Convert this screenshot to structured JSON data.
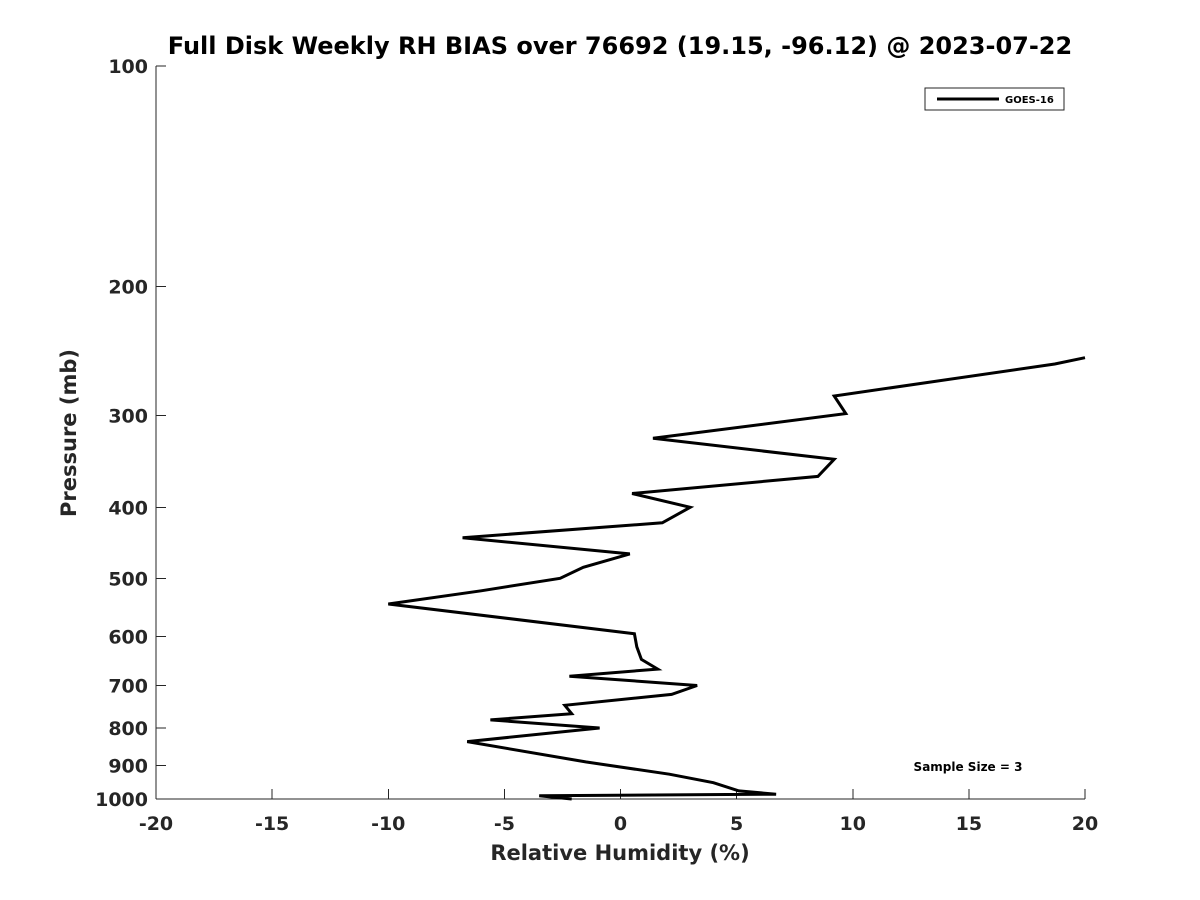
{
  "chart_data": {
    "type": "line",
    "title": "Full Disk Weekly RH BIAS over 76692 (19.15, -96.12) @ 2023-07-22",
    "xlabel": "Relative Humidity (%)",
    "ylabel": "Pressure (mb)",
    "xlim": [
      -20,
      20
    ],
    "ylim": [
      100,
      1000
    ],
    "yscale": "log",
    "y_reversed": true,
    "x_ticks": [
      -20,
      -15,
      -10,
      -5,
      0,
      5,
      10,
      15,
      20
    ],
    "x_tick_labels": [
      "-20",
      "-15",
      "-10",
      "-5",
      "0",
      "5",
      "10",
      "15",
      "20"
    ],
    "y_ticks": [
      100,
      200,
      300,
      400,
      500,
      600,
      700,
      800,
      900,
      1000
    ],
    "y_tick_labels": [
      "100",
      "200",
      "300",
      "400",
      "500",
      "600",
      "700",
      "800",
      "900",
      "1000"
    ],
    "grid": false,
    "legend_position": "top-right",
    "annotation": "Sample Size = 3",
    "series": [
      {
        "name": "GOES-16",
        "color": "#000000",
        "points": [
          {
            "x": 20.0,
            "y": 250
          },
          {
            "x": 18.7,
            "y": 255
          },
          {
            "x": 9.2,
            "y": 282
          },
          {
            "x": 9.7,
            "y": 298
          },
          {
            "x": 1.4,
            "y": 322
          },
          {
            "x": 9.2,
            "y": 344
          },
          {
            "x": 8.5,
            "y": 363
          },
          {
            "x": 0.5,
            "y": 383
          },
          {
            "x": 3.0,
            "y": 400
          },
          {
            "x": 1.8,
            "y": 420
          },
          {
            "x": -6.8,
            "y": 440
          },
          {
            "x": 0.4,
            "y": 463
          },
          {
            "x": -1.6,
            "y": 483
          },
          {
            "x": -2.6,
            "y": 500
          },
          {
            "x": -6.0,
            "y": 520
          },
          {
            "x": -10.0,
            "y": 542
          },
          {
            "x": 0.6,
            "y": 595
          },
          {
            "x": 0.7,
            "y": 620
          },
          {
            "x": 0.9,
            "y": 645
          },
          {
            "x": 1.6,
            "y": 665
          },
          {
            "x": -2.2,
            "y": 680
          },
          {
            "x": 3.3,
            "y": 700
          },
          {
            "x": 2.2,
            "y": 720
          },
          {
            "x": -2.4,
            "y": 745
          },
          {
            "x": -2.1,
            "y": 765
          },
          {
            "x": -5.6,
            "y": 780
          },
          {
            "x": -0.9,
            "y": 800
          },
          {
            "x": -6.6,
            "y": 835
          },
          {
            "x": -1.5,
            "y": 890
          },
          {
            "x": 2.1,
            "y": 925
          },
          {
            "x": 4.0,
            "y": 950
          },
          {
            "x": 5.1,
            "y": 975
          },
          {
            "x": 6.7,
            "y": 985
          },
          {
            "x": -3.5,
            "y": 990
          },
          {
            "x": -2.1,
            "y": 1000
          }
        ]
      }
    ]
  }
}
